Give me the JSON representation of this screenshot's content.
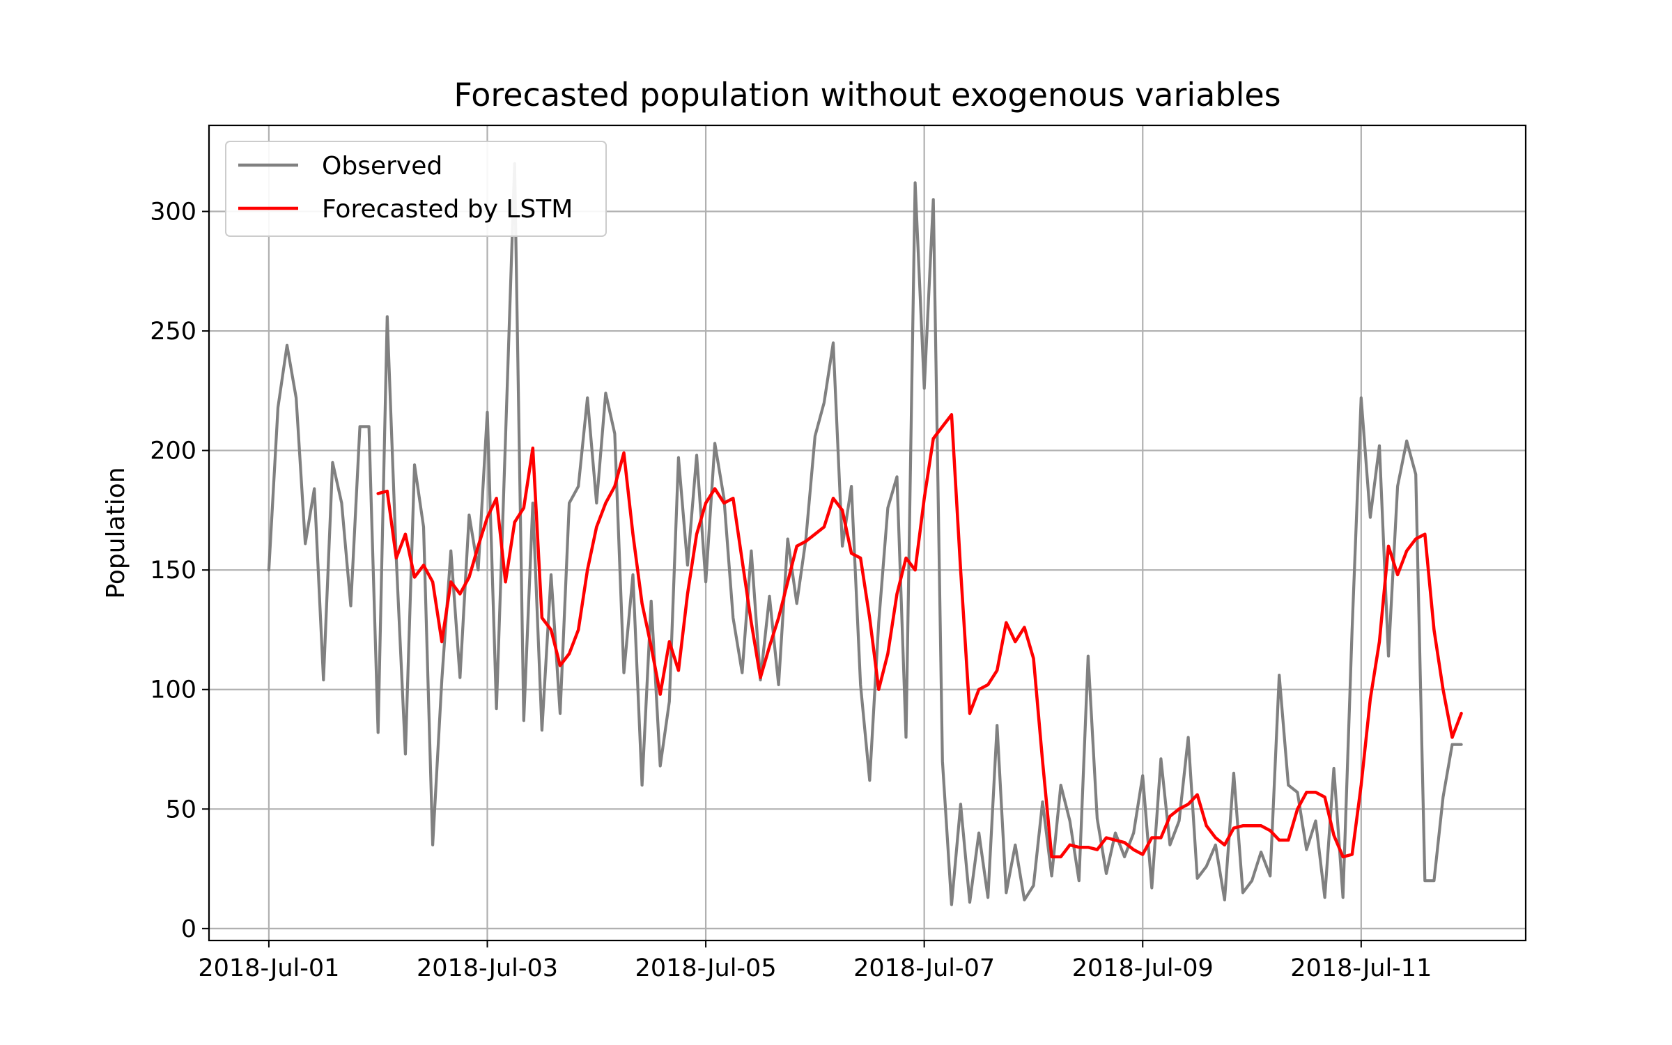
{
  "chart_data": {
    "type": "line",
    "title": "Forecasted population without exogenous variables",
    "xlabel": "",
    "ylabel": "Population",
    "x_range": [
      "2018-07-01T00:00",
      "2018-07-11T23:00"
    ],
    "ylim": [
      -5,
      336
    ],
    "x_ticks": [
      "2018-Jul-01",
      "2018-Jul-03",
      "2018-Jul-05",
      "2018-Jul-07",
      "2018-Jul-09",
      "2018-Jul-11"
    ],
    "y_ticks": [
      0,
      50,
      100,
      150,
      200,
      250,
      300
    ],
    "grid": true,
    "legend": {
      "position": "upper-left",
      "entries": [
        {
          "label": "Observed",
          "color": "#808080"
        },
        {
          "label": "Forecasted by LSTM",
          "color": "#ff0000"
        }
      ]
    },
    "series": [
      {
        "name": "Observed",
        "color": "#808080",
        "x": [
          "2018-07-01T00:00",
          "2018-07-01T02:00",
          "2018-07-01T04:00",
          "2018-07-01T06:00",
          "2018-07-01T08:00",
          "2018-07-01T10:00",
          "2018-07-01T12:00",
          "2018-07-01T14:00",
          "2018-07-01T16:00",
          "2018-07-01T18:00",
          "2018-07-01T20:00",
          "2018-07-01T22:00",
          "2018-07-02T00:00",
          "2018-07-02T02:00",
          "2018-07-02T04:00",
          "2018-07-02T06:00",
          "2018-07-02T08:00",
          "2018-07-02T10:00",
          "2018-07-02T12:00",
          "2018-07-02T14:00",
          "2018-07-02T16:00",
          "2018-07-02T18:00",
          "2018-07-02T20:00",
          "2018-07-02T22:00",
          "2018-07-03T00:00",
          "2018-07-03T02:00",
          "2018-07-03T04:00",
          "2018-07-03T06:00",
          "2018-07-03T08:00",
          "2018-07-03T10:00",
          "2018-07-03T12:00",
          "2018-07-03T14:00",
          "2018-07-03T16:00",
          "2018-07-03T18:00",
          "2018-07-03T20:00",
          "2018-07-03T22:00",
          "2018-07-04T00:00",
          "2018-07-04T02:00",
          "2018-07-04T04:00",
          "2018-07-04T06:00",
          "2018-07-04T08:00",
          "2018-07-04T10:00",
          "2018-07-04T12:00",
          "2018-07-04T14:00",
          "2018-07-04T16:00",
          "2018-07-04T18:00",
          "2018-07-04T20:00",
          "2018-07-04T22:00",
          "2018-07-05T00:00",
          "2018-07-05T02:00",
          "2018-07-05T04:00",
          "2018-07-05T06:00",
          "2018-07-05T08:00",
          "2018-07-05T10:00",
          "2018-07-05T12:00",
          "2018-07-05T14:00",
          "2018-07-05T16:00",
          "2018-07-05T18:00",
          "2018-07-05T20:00",
          "2018-07-05T22:00",
          "2018-07-06T00:00",
          "2018-07-06T02:00",
          "2018-07-06T04:00",
          "2018-07-06T06:00",
          "2018-07-06T08:00",
          "2018-07-06T10:00",
          "2018-07-06T12:00",
          "2018-07-06T14:00",
          "2018-07-06T16:00",
          "2018-07-06T18:00",
          "2018-07-06T20:00",
          "2018-07-06T22:00",
          "2018-07-07T00:00",
          "2018-07-07T02:00",
          "2018-07-07T04:00",
          "2018-07-07T06:00",
          "2018-07-07T08:00",
          "2018-07-07T10:00",
          "2018-07-07T12:00",
          "2018-07-07T14:00",
          "2018-07-07T16:00",
          "2018-07-07T18:00",
          "2018-07-07T20:00",
          "2018-07-07T22:00",
          "2018-07-08T00:00",
          "2018-07-08T02:00",
          "2018-07-08T04:00",
          "2018-07-08T06:00",
          "2018-07-08T08:00",
          "2018-07-08T10:00",
          "2018-07-08T12:00",
          "2018-07-08T14:00",
          "2018-07-08T16:00",
          "2018-07-08T18:00",
          "2018-07-08T20:00",
          "2018-07-08T22:00",
          "2018-07-09T00:00",
          "2018-07-09T02:00",
          "2018-07-09T04:00",
          "2018-07-09T06:00",
          "2018-07-09T08:00",
          "2018-07-09T10:00",
          "2018-07-09T12:00",
          "2018-07-09T14:00",
          "2018-07-09T16:00",
          "2018-07-09T18:00",
          "2018-07-09T20:00",
          "2018-07-09T22:00",
          "2018-07-10T00:00",
          "2018-07-10T02:00",
          "2018-07-10T04:00",
          "2018-07-10T06:00",
          "2018-07-10T08:00",
          "2018-07-10T10:00",
          "2018-07-10T12:00",
          "2018-07-10T14:00",
          "2018-07-10T16:00",
          "2018-07-10T18:00",
          "2018-07-10T20:00",
          "2018-07-10T22:00",
          "2018-07-11T00:00",
          "2018-07-11T02:00",
          "2018-07-11T04:00",
          "2018-07-11T06:00",
          "2018-07-11T08:00",
          "2018-07-11T10:00",
          "2018-07-11T12:00",
          "2018-07-11T14:00",
          "2018-07-11T16:00",
          "2018-07-11T18:00",
          "2018-07-11T20:00",
          "2018-07-11T22:00"
        ],
        "y": [
          150,
          218,
          244,
          222,
          161,
          184,
          104,
          195,
          178,
          135,
          210,
          210,
          82,
          256,
          155,
          73,
          194,
          168,
          35,
          104,
          158,
          105,
          173,
          150,
          216,
          92,
          205,
          320,
          87,
          178,
          83,
          148,
          90,
          178,
          185,
          222,
          178,
          224,
          207,
          107,
          148,
          60,
          137,
          68,
          95,
          197,
          152,
          198,
          145,
          203,
          180,
          130,
          107,
          158,
          104,
          139,
          102,
          163,
          136,
          163,
          206,
          220,
          245,
          160,
          185,
          102,
          62,
          128,
          176,
          189,
          80,
          312,
          226,
          305,
          70,
          10,
          52,
          11,
          40,
          13,
          85,
          15,
          35,
          12,
          18,
          53,
          22,
          60,
          45,
          20,
          114,
          46,
          23,
          40,
          30,
          40,
          64,
          17,
          71,
          35,
          45,
          80,
          21,
          26,
          35,
          12,
          65,
          15,
          20,
          32,
          22,
          106,
          60,
          57,
          33,
          45,
          13,
          67,
          13,
          125,
          222,
          172,
          202,
          114,
          185,
          204,
          190,
          20,
          20,
          55,
          77,
          77
        ]
      },
      {
        "name": "Forecasted by LSTM",
        "color": "#ff0000",
        "x": [
          "2018-07-02T00:00",
          "2018-07-02T02:00",
          "2018-07-02T04:00",
          "2018-07-02T06:00",
          "2018-07-02T08:00",
          "2018-07-02T10:00",
          "2018-07-02T12:00",
          "2018-07-02T14:00",
          "2018-07-02T16:00",
          "2018-07-02T18:00",
          "2018-07-02T20:00",
          "2018-07-02T22:00",
          "2018-07-03T00:00",
          "2018-07-03T02:00",
          "2018-07-03T04:00",
          "2018-07-03T06:00",
          "2018-07-03T08:00",
          "2018-07-03T10:00",
          "2018-07-03T12:00",
          "2018-07-03T14:00",
          "2018-07-03T16:00",
          "2018-07-03T18:00",
          "2018-07-03T20:00",
          "2018-07-03T22:00",
          "2018-07-04T00:00",
          "2018-07-04T02:00",
          "2018-07-04T04:00",
          "2018-07-04T06:00",
          "2018-07-04T08:00",
          "2018-07-04T10:00",
          "2018-07-04T12:00",
          "2018-07-04T14:00",
          "2018-07-04T16:00",
          "2018-07-04T18:00",
          "2018-07-04T20:00",
          "2018-07-04T22:00",
          "2018-07-05T00:00",
          "2018-07-05T02:00",
          "2018-07-05T04:00",
          "2018-07-05T06:00",
          "2018-07-05T08:00",
          "2018-07-05T10:00",
          "2018-07-05T12:00",
          "2018-07-05T14:00",
          "2018-07-05T16:00",
          "2018-07-05T18:00",
          "2018-07-05T20:00",
          "2018-07-05T22:00",
          "2018-07-06T00:00",
          "2018-07-06T02:00",
          "2018-07-06T04:00",
          "2018-07-06T06:00",
          "2018-07-06T08:00",
          "2018-07-06T10:00",
          "2018-07-06T12:00",
          "2018-07-06T14:00",
          "2018-07-06T16:00",
          "2018-07-06T18:00",
          "2018-07-06T20:00",
          "2018-07-06T22:00",
          "2018-07-07T00:00",
          "2018-07-07T02:00",
          "2018-07-07T04:00",
          "2018-07-07T06:00",
          "2018-07-07T08:00",
          "2018-07-07T10:00",
          "2018-07-07T12:00",
          "2018-07-07T14:00",
          "2018-07-07T16:00",
          "2018-07-07T18:00",
          "2018-07-07T20:00",
          "2018-07-07T22:00",
          "2018-07-08T00:00",
          "2018-07-08T02:00",
          "2018-07-08T04:00",
          "2018-07-08T06:00",
          "2018-07-08T08:00",
          "2018-07-08T10:00",
          "2018-07-08T12:00",
          "2018-07-08T14:00",
          "2018-07-08T16:00",
          "2018-07-08T18:00",
          "2018-07-08T20:00",
          "2018-07-08T22:00",
          "2018-07-09T00:00",
          "2018-07-09T02:00",
          "2018-07-09T04:00",
          "2018-07-09T06:00",
          "2018-07-09T08:00",
          "2018-07-09T10:00",
          "2018-07-09T12:00",
          "2018-07-09T14:00",
          "2018-07-09T16:00",
          "2018-07-09T18:00",
          "2018-07-09T20:00",
          "2018-07-09T22:00",
          "2018-07-10T00:00",
          "2018-07-10T02:00",
          "2018-07-10T04:00",
          "2018-07-10T06:00",
          "2018-07-10T08:00",
          "2018-07-10T10:00",
          "2018-07-10T12:00",
          "2018-07-10T14:00",
          "2018-07-10T16:00",
          "2018-07-10T18:00",
          "2018-07-10T20:00",
          "2018-07-10T22:00",
          "2018-07-11T00:00",
          "2018-07-11T02:00",
          "2018-07-11T04:00",
          "2018-07-11T06:00",
          "2018-07-11T08:00",
          "2018-07-11T10:00",
          "2018-07-11T12:00",
          "2018-07-11T14:00",
          "2018-07-11T16:00",
          "2018-07-11T18:00",
          "2018-07-11T20:00",
          "2018-07-11T22:00"
        ],
        "y": [
          182,
          183,
          155,
          165,
          147,
          152,
          145,
          120,
          145,
          140,
          147,
          160,
          172,
          180,
          145,
          170,
          176,
          201,
          130,
          125,
          110,
          115,
          125,
          150,
          168,
          178,
          185,
          199,
          165,
          136,
          118,
          98,
          120,
          108,
          140,
          165,
          178,
          184,
          178,
          180,
          154,
          128,
          105,
          118,
          130,
          145,
          160,
          162,
          165,
          168,
          180,
          175,
          157,
          155,
          130,
          100,
          115,
          140,
          155,
          150,
          180,
          205,
          210,
          215,
          150,
          90,
          100,
          102,
          108,
          128,
          120,
          126,
          113,
          70,
          30,
          30,
          35,
          34,
          34,
          33,
          38,
          37,
          36,
          33,
          31,
          38,
          38,
          47,
          50,
          52,
          56,
          43,
          38,
          35,
          42,
          43,
          43,
          43,
          41,
          37,
          37,
          50,
          57,
          57,
          55,
          39,
          30,
          31,
          60,
          96,
          120,
          160,
          148,
          158,
          163,
          165,
          125,
          100,
          80,
          90
        ]
      }
    ]
  }
}
